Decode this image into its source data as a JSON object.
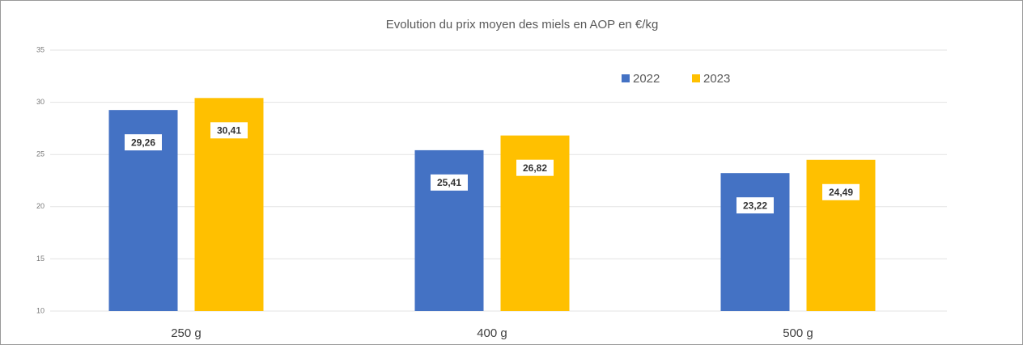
{
  "chart_data": {
    "type": "bar",
    "title": "Evolution du prix moyen des miels en AOP en €/kg",
    "categories": [
      "250 g",
      "400 g",
      "500 g"
    ],
    "series": [
      {
        "name": "2022",
        "color": "#4472c4",
        "values": [
          29.26,
          25.41,
          23.22
        ],
        "value_labels": [
          "29,26",
          "25,41",
          "23,22"
        ]
      },
      {
        "name": "2023",
        "color": "#ffc000",
        "values": [
          30.41,
          26.82,
          24.49
        ],
        "value_labels": [
          "30,41",
          "26,82",
          "24,49"
        ]
      }
    ],
    "ylim": [
      10,
      35
    ],
    "yticks": [
      10,
      15,
      20,
      25,
      30,
      35
    ],
    "grid": true,
    "legend": "top-right"
  }
}
